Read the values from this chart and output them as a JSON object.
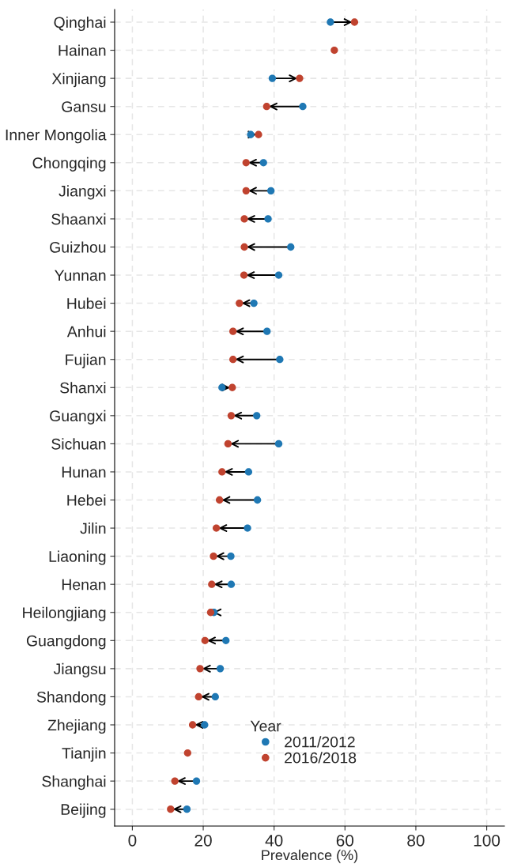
{
  "chart_data": {
    "type": "scatter",
    "orientation": "horizontal",
    "xlabel": "Prevalence (%)",
    "legend_title": "Year",
    "categories": [
      "Qinghai",
      "Hainan",
      "Xinjiang",
      "Gansu",
      "Inner Mongolia",
      "Chongqing",
      "Jiangxi",
      "Shaanxi",
      "Guizhou",
      "Yunnan",
      "Hubei",
      "Anhui",
      "Fujian",
      "Shanxi",
      "Guangxi",
      "Sichuan",
      "Hunan",
      "Hebei",
      "Jilin",
      "Liaoning",
      "Henan",
      "Heilongjiang",
      "Guangdong",
      "Jiangsu",
      "Shandong",
      "Zhejiang",
      "Tianjin",
      "Shanghai",
      "Beijing"
    ],
    "series": [
      {
        "name": "2011/2012",
        "color": "#1f78b4",
        "values": [
          55.9,
          null,
          39.5,
          48.1,
          33.4,
          37.0,
          39.1,
          38.3,
          44.7,
          41.3,
          34.3,
          38.0,
          41.6,
          25.3,
          35.1,
          41.3,
          32.8,
          35.3,
          32.5,
          27.8,
          27.9,
          23.0,
          26.4,
          24.8,
          23.4,
          20.4,
          null,
          18.1,
          15.4
        ]
      },
      {
        "name": "2016/2018",
        "color": "#c0432f",
        "values": [
          62.7,
          57.0,
          47.2,
          37.9,
          35.6,
          32.1,
          32.1,
          31.6,
          31.6,
          31.5,
          30.2,
          28.4,
          28.4,
          28.2,
          27.9,
          27.0,
          25.3,
          24.6,
          23.7,
          22.9,
          22.4,
          22.1,
          20.5,
          19.1,
          18.7,
          17.0,
          15.6,
          12.0,
          10.8
        ]
      }
    ],
    "xlim": [
      -5,
      105
    ],
    "xticks": [
      0,
      20,
      40,
      60,
      80,
      100
    ],
    "grid": true,
    "legend": "bottom right",
    "marker": "circle"
  }
}
